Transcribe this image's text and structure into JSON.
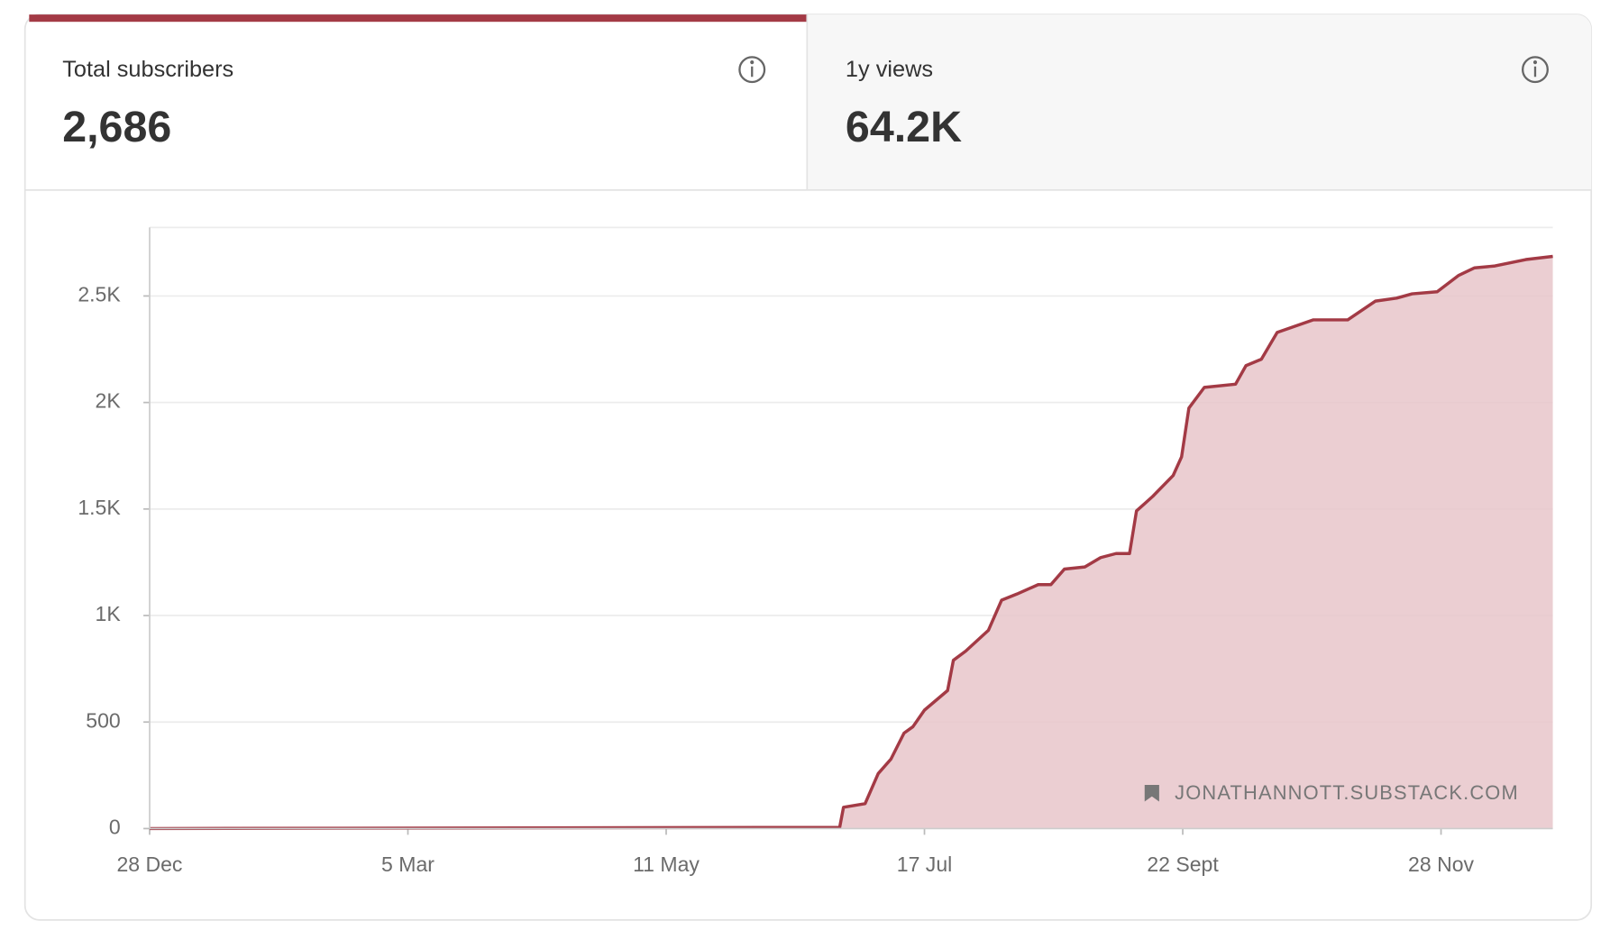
{
  "tabs": [
    {
      "label": "Total subscribers",
      "value": "2,686"
    },
    {
      "label": "1y views",
      "value": "64.2K"
    }
  ],
  "chart_data": {
    "type": "area",
    "color": "#a33a45",
    "fill": "#e8c5ca",
    "x": [
      0,
      159,
      179,
      180,
      185.6,
      189,
      192.3,
      195.7,
      198,
      201,
      207,
      208.5,
      211.7,
      217.6,
      221,
      225,
      230.5,
      233.8,
      237.3,
      242.6,
      246.7,
      250.7,
      254.2,
      256,
      260.2,
      265.5,
      267.7,
      269.6,
      273.6,
      281.7,
      284.4,
      288.4,
      292.5,
      301.9,
      310.8,
      318,
      323.5,
      327.5,
      334,
      339.6,
      343.7,
      349,
      357,
      364
    ],
    "values": [
      0,
      5,
      5,
      100,
      117,
      258,
      326,
      448,
      478,
      556,
      648,
      790,
      833,
      931,
      1072,
      1101,
      1145,
      1145,
      1218,
      1228,
      1272,
      1291,
      1291,
      1491,
      1559,
      1657,
      1745,
      1974,
      2071,
      2086,
      2173,
      2203,
      2329,
      2388,
      2388,
      2476,
      2490,
      2510,
      2520,
      2597,
      2632,
      2641,
      2671,
      2686
    ],
    "xlim": [
      0,
      364
    ],
    "xticks": [
      {
        "value": 0,
        "label": "28 Dec"
      },
      {
        "value": 67,
        "label": "5 Mar"
      },
      {
        "value": 134,
        "label": "11 May"
      },
      {
        "value": 201,
        "label": "17 Jul"
      },
      {
        "value": 268,
        "label": "22 Sept"
      },
      {
        "value": 335,
        "label": "28 Nov"
      }
    ],
    "ylim": [
      0,
      2822
    ],
    "yticks": [
      0,
      500,
      {
        "value": 1000,
        "label": "1K"
      },
      {
        "value": 1500,
        "label": "1.5K"
      },
      {
        "value": 2000,
        "label": "2K"
      },
      {
        "value": 2500,
        "label": "2.5K"
      }
    ],
    "grid": true,
    "watermark": "JONATHANNOTT.SUBSTACK.COM"
  }
}
